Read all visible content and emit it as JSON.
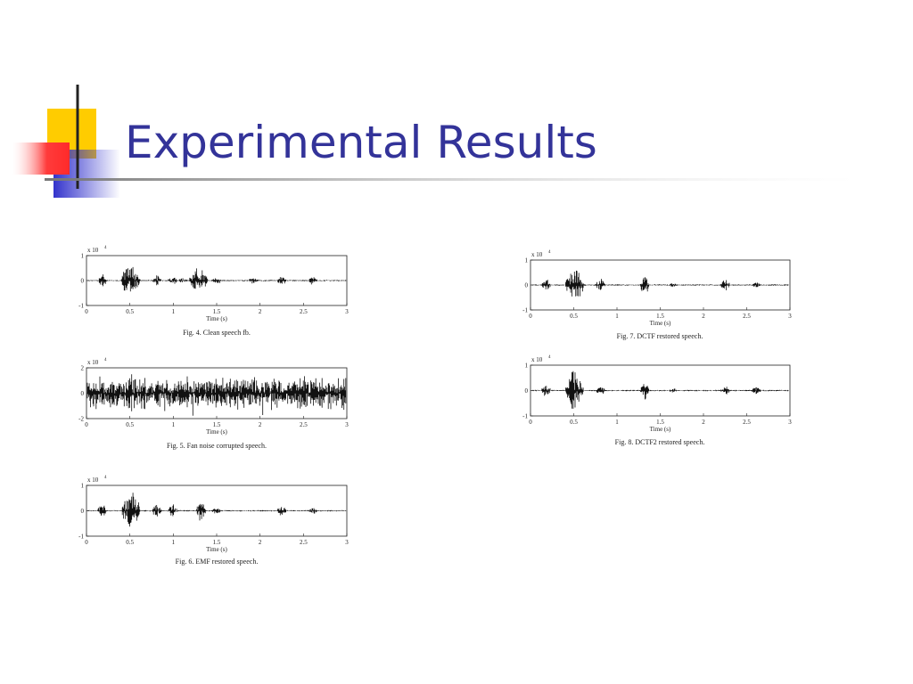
{
  "slide": {
    "title": "Experimental Results",
    "figures": [
      {
        "scale_label": "x 10",
        "scale_exponent": "4",
        "yticks": [
          -1,
          0,
          1
        ],
        "xticks": [
          0,
          0.5,
          1,
          1.5,
          2,
          2.5,
          3
        ],
        "x_label": "Time (s)",
        "caption": "Fig. 4. Clean speech fb."
      },
      {
        "scale_label": "x 10",
        "scale_exponent": "4",
        "yticks": [
          -2,
          0,
          2
        ],
        "xticks": [
          0,
          0.5,
          1,
          1.5,
          2,
          2.5,
          3
        ],
        "x_label": "Time (s)",
        "caption": "Fig. 5. Fan noise corrupted speech."
      },
      {
        "scale_label": "x 10",
        "scale_exponent": "4",
        "yticks": [
          -1,
          0,
          1
        ],
        "xticks": [
          0,
          0.5,
          1,
          1.5,
          2,
          2.5,
          3
        ],
        "x_label": "Time (s)",
        "caption": "Fig. 6. EMF restored speech."
      },
      {
        "scale_label": "x 10",
        "scale_exponent": "4",
        "yticks": [
          -1,
          0,
          1
        ],
        "xticks": [
          0,
          0.5,
          1,
          1.5,
          2,
          2.5,
          3
        ],
        "x_label": "Time (s)",
        "caption": "Fig. 7. DCTF restored speech."
      },
      {
        "scale_label": "x 10",
        "scale_exponent": "4",
        "yticks": [
          -1,
          0,
          1
        ],
        "xticks": [
          0,
          0.5,
          1,
          1.5,
          2,
          2.5,
          3
        ],
        "x_label": "Time (s)",
        "caption": "Fig. 8. DCTF2 restored speech."
      }
    ]
  }
}
